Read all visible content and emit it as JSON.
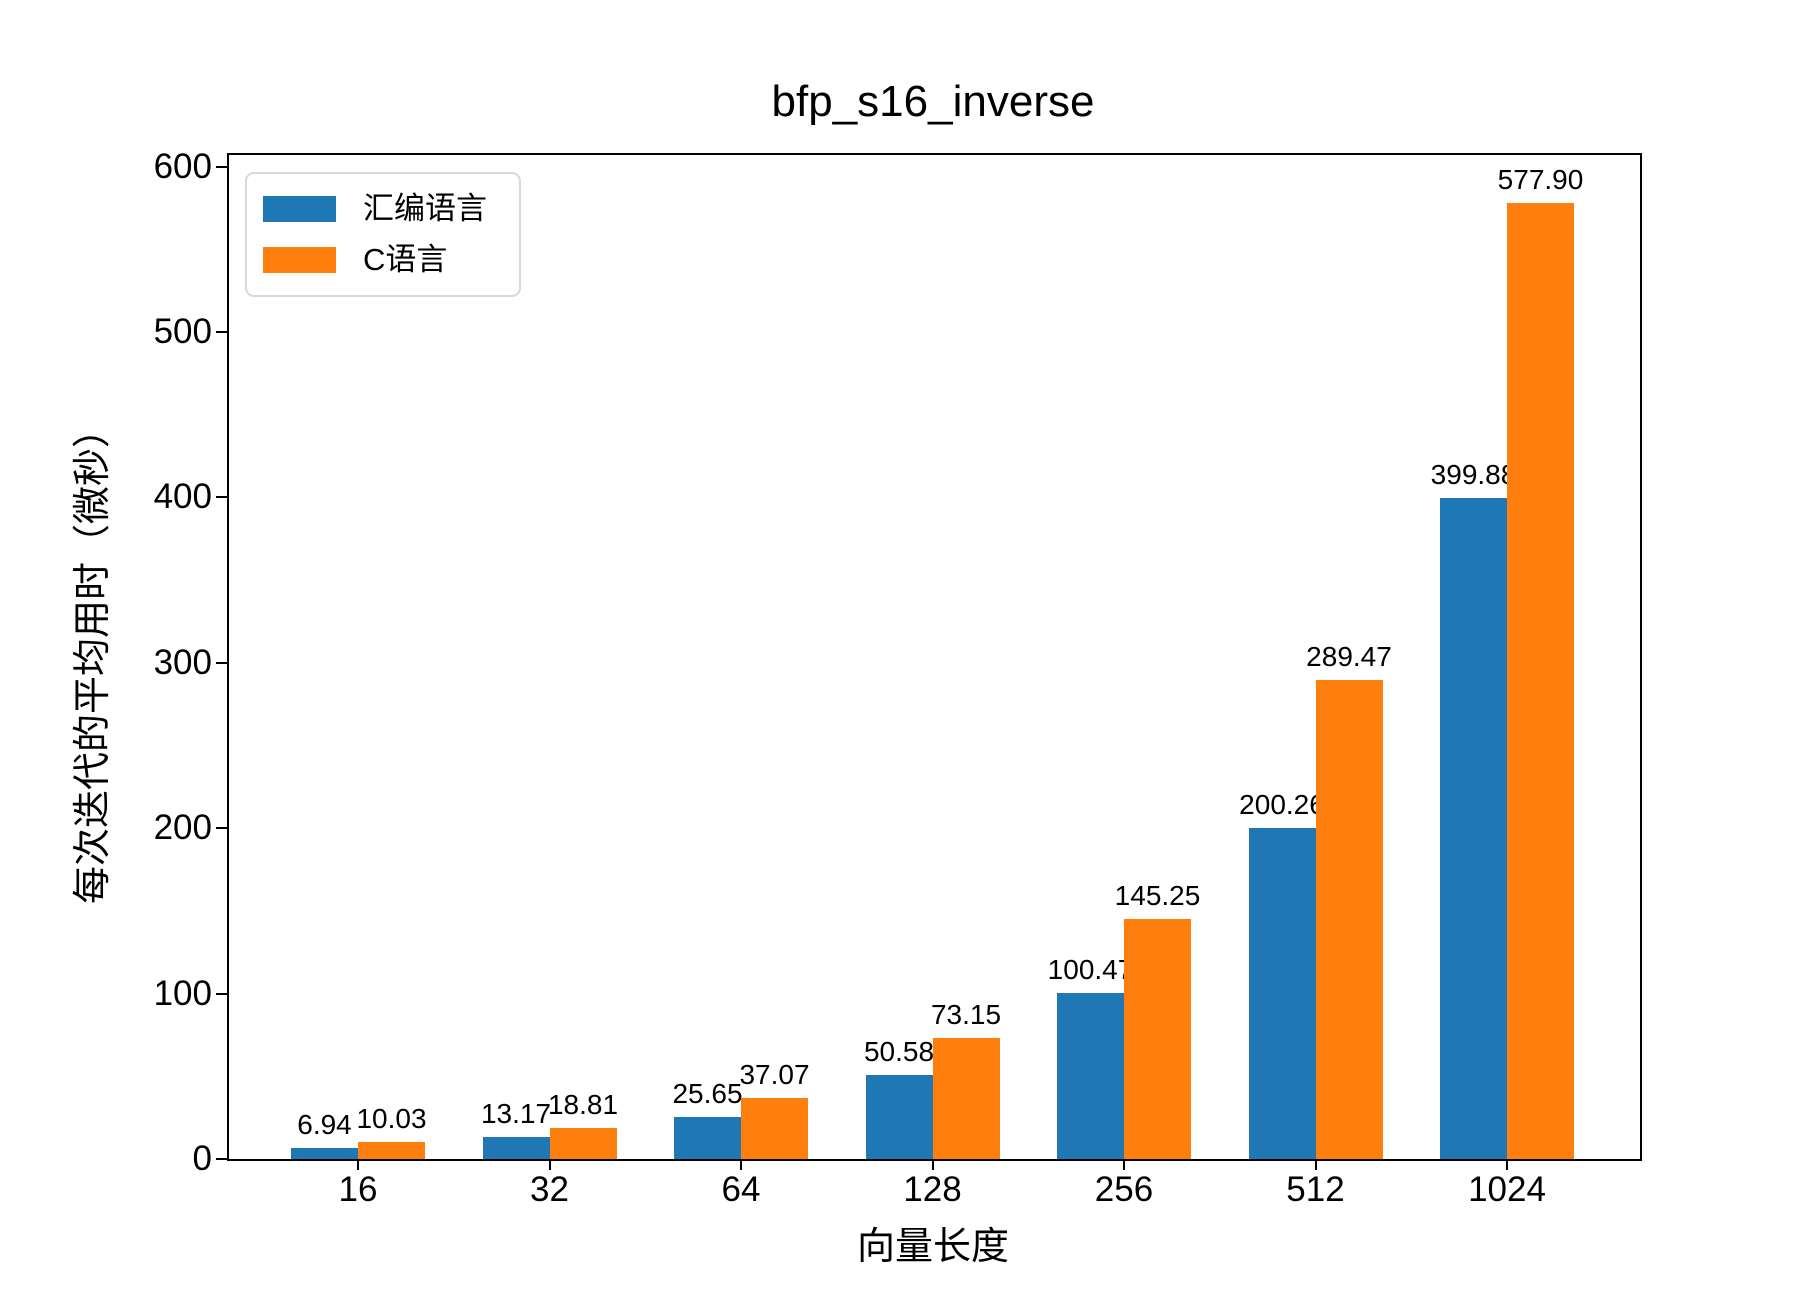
{
  "chart_data": {
    "type": "bar",
    "title": "bfp_s16_inverse",
    "xlabel": "向量长度",
    "ylabel": "每次迭代的平均用时（微秒）",
    "categories": [
      "16",
      "32",
      "64",
      "128",
      "256",
      "512",
      "1024"
    ],
    "series": [
      {
        "name": "汇编语言",
        "color": "#1f77b4",
        "values": [
          6.94,
          13.17,
          25.65,
          50.58,
          100.47,
          200.26,
          399.88
        ]
      },
      {
        "name": "C语言",
        "color": "#ff7f0e",
        "values": [
          10.03,
          18.81,
          37.07,
          73.15,
          145.25,
          289.47,
          577.9
        ]
      }
    ],
    "value_labels_decimals": 2,
    "yticks": [
      0,
      100,
      200,
      300,
      400,
      500,
      600
    ],
    "ylim": [
      0,
      607
    ],
    "grid": false,
    "legend_position": "upper-left",
    "axis_color": "#000000",
    "background_color": "#ffffff"
  }
}
